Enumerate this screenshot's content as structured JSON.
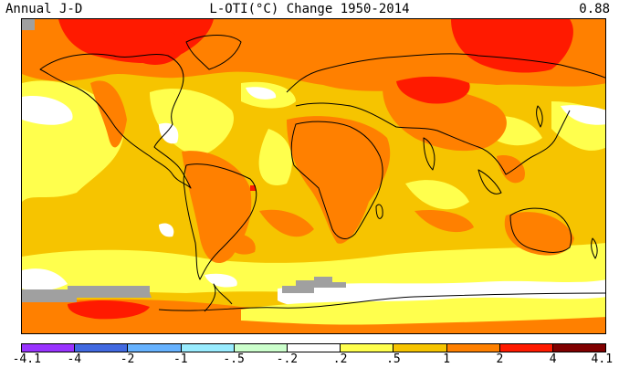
{
  "header": {
    "left_label": "Annual J-D",
    "title": "L-OTI(°C) Change 1950-2014",
    "global_mean": "0.88"
  },
  "legend": {
    "colors": [
      "#9933ff",
      "#4169e1",
      "#66b2ff",
      "#99ecff",
      "#ccffcc",
      "#ffffff",
      "#ffff4d",
      "#f6c400",
      "#ff8000",
      "#ff1a00",
      "#800000"
    ],
    "tick_labels": [
      "-4.1",
      "-4",
      "-2",
      "-1",
      "-.5",
      "-.2",
      ".2",
      ".5",
      "1",
      "2",
      "4",
      "4.1"
    ]
  },
  "colors": {
    "ocean_base": "#f6c400",
    "no_data": "#a0a0a0",
    "coastline": "#000000"
  }
}
